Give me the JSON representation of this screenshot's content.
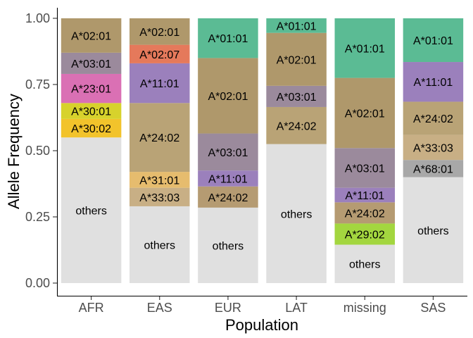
{
  "chart_data": {
    "type": "bar",
    "stacked": true,
    "xlabel": "Population",
    "ylabel": "Allele Frequency",
    "ylim": [
      0,
      1
    ],
    "yticks": [
      "0.00",
      "0.25",
      "0.50",
      "0.75",
      "1.00"
    ],
    "ytick_values": [
      0,
      0.25,
      0.5,
      0.75,
      1.0
    ],
    "grid": false,
    "legend": "none",
    "categories": [
      "AFR",
      "EAS",
      "EUR",
      "LAT",
      "missing",
      "SAS"
    ],
    "stacks": [
      {
        "category": "AFR",
        "segments": [
          {
            "label": "others",
            "from": 0.0,
            "to": 0.55,
            "color": "#e0e0e0"
          },
          {
            "label": "A*30:02",
            "from": 0.55,
            "to": 0.62,
            "color": "#f2c32b"
          },
          {
            "label": "A*30:01",
            "from": 0.62,
            "to": 0.68,
            "color": "#d7d22c"
          },
          {
            "label": "A*23:01",
            "from": 0.68,
            "to": 0.79,
            "color": "#da70b4"
          },
          {
            "label": "A*03:01",
            "from": 0.79,
            "to": 0.87,
            "color": "#9b8a9c"
          },
          {
            "label": "A*02:01",
            "from": 0.87,
            "to": 1.0,
            "color": "#af986b"
          }
        ]
      },
      {
        "category": "EAS",
        "segments": [
          {
            "label": "others",
            "from": 0.0,
            "to": 0.29,
            "color": "#e0e0e0"
          },
          {
            "label": "A*33:03",
            "from": 0.29,
            "to": 0.36,
            "color": "#c8af85"
          },
          {
            "label": "A*31:01",
            "from": 0.36,
            "to": 0.42,
            "color": "#e6bc6e"
          },
          {
            "label": "A*24:02",
            "from": 0.42,
            "to": 0.68,
            "color": "#b9a376"
          },
          {
            "label": "A*11:01",
            "from": 0.68,
            "to": 0.83,
            "color": "#9b80bc"
          },
          {
            "label": "A*02:07",
            "from": 0.83,
            "to": 0.9,
            "color": "#e5795b"
          },
          {
            "label": "A*02:01",
            "from": 0.9,
            "to": 1.0,
            "color": "#af986b"
          }
        ]
      },
      {
        "category": "EUR",
        "segments": [
          {
            "label": "others",
            "from": 0.0,
            "to": 0.285,
            "color": "#e0e0e0"
          },
          {
            "label": "A*24:02",
            "from": 0.285,
            "to": 0.365,
            "color": "#b59b72"
          },
          {
            "label": "A*11:01",
            "from": 0.365,
            "to": 0.425,
            "color": "#9b80bc"
          },
          {
            "label": "A*03:01",
            "from": 0.425,
            "to": 0.565,
            "color": "#9b8a9c"
          },
          {
            "label": "A*02:01",
            "from": 0.565,
            "to": 0.85,
            "color": "#af986b"
          },
          {
            "label": "A*01:01",
            "from": 0.85,
            "to": 1.0,
            "color": "#5bbb94"
          }
        ]
      },
      {
        "category": "LAT",
        "segments": [
          {
            "label": "others",
            "from": 0.0,
            "to": 0.525,
            "color": "#e0e0e0"
          },
          {
            "label": "A*24:02",
            "from": 0.525,
            "to": 0.665,
            "color": "#b9a376"
          },
          {
            "label": "A*03:01",
            "from": 0.665,
            "to": 0.745,
            "color": "#9b8a9c"
          },
          {
            "label": "A*02:01",
            "from": 0.745,
            "to": 0.945,
            "color": "#af986b"
          },
          {
            "label": "A*01:01",
            "from": 0.945,
            "to": 1.0,
            "color": "#5bbb94"
          }
        ]
      },
      {
        "category": "missing",
        "segments": [
          {
            "label": "others",
            "from": 0.0,
            "to": 0.145,
            "color": "#e0e0e0"
          },
          {
            "label": "A*29:02",
            "from": 0.145,
            "to": 0.225,
            "color": "#a3d63f"
          },
          {
            "label": "A*24:02",
            "from": 0.225,
            "to": 0.305,
            "color": "#b59b72"
          },
          {
            "label": "A*11:01",
            "from": 0.305,
            "to": 0.36,
            "color": "#9b80bc"
          },
          {
            "label": "A*03:01",
            "from": 0.36,
            "to": 0.51,
            "color": "#9b8a9c"
          },
          {
            "label": "A*02:01",
            "from": 0.51,
            "to": 0.775,
            "color": "#af986b"
          },
          {
            "label": "A*01:01",
            "from": 0.775,
            "to": 1.0,
            "color": "#5bbb94"
          }
        ]
      },
      {
        "category": "SAS",
        "segments": [
          {
            "label": "others",
            "from": 0.0,
            "to": 0.4,
            "color": "#e0e0e0"
          },
          {
            "label": "A*68:01",
            "from": 0.4,
            "to": 0.465,
            "color": "#a8a8a8"
          },
          {
            "label": "A*33:03",
            "from": 0.465,
            "to": 0.56,
            "color": "#c8af85"
          },
          {
            "label": "A*24:02",
            "from": 0.56,
            "to": 0.685,
            "color": "#b9a376"
          },
          {
            "label": "A*11:01",
            "from": 0.685,
            "to": 0.835,
            "color": "#9b80bc"
          },
          {
            "label": "A*01:01",
            "from": 0.835,
            "to": 1.0,
            "color": "#5bbb94"
          }
        ]
      }
    ]
  }
}
